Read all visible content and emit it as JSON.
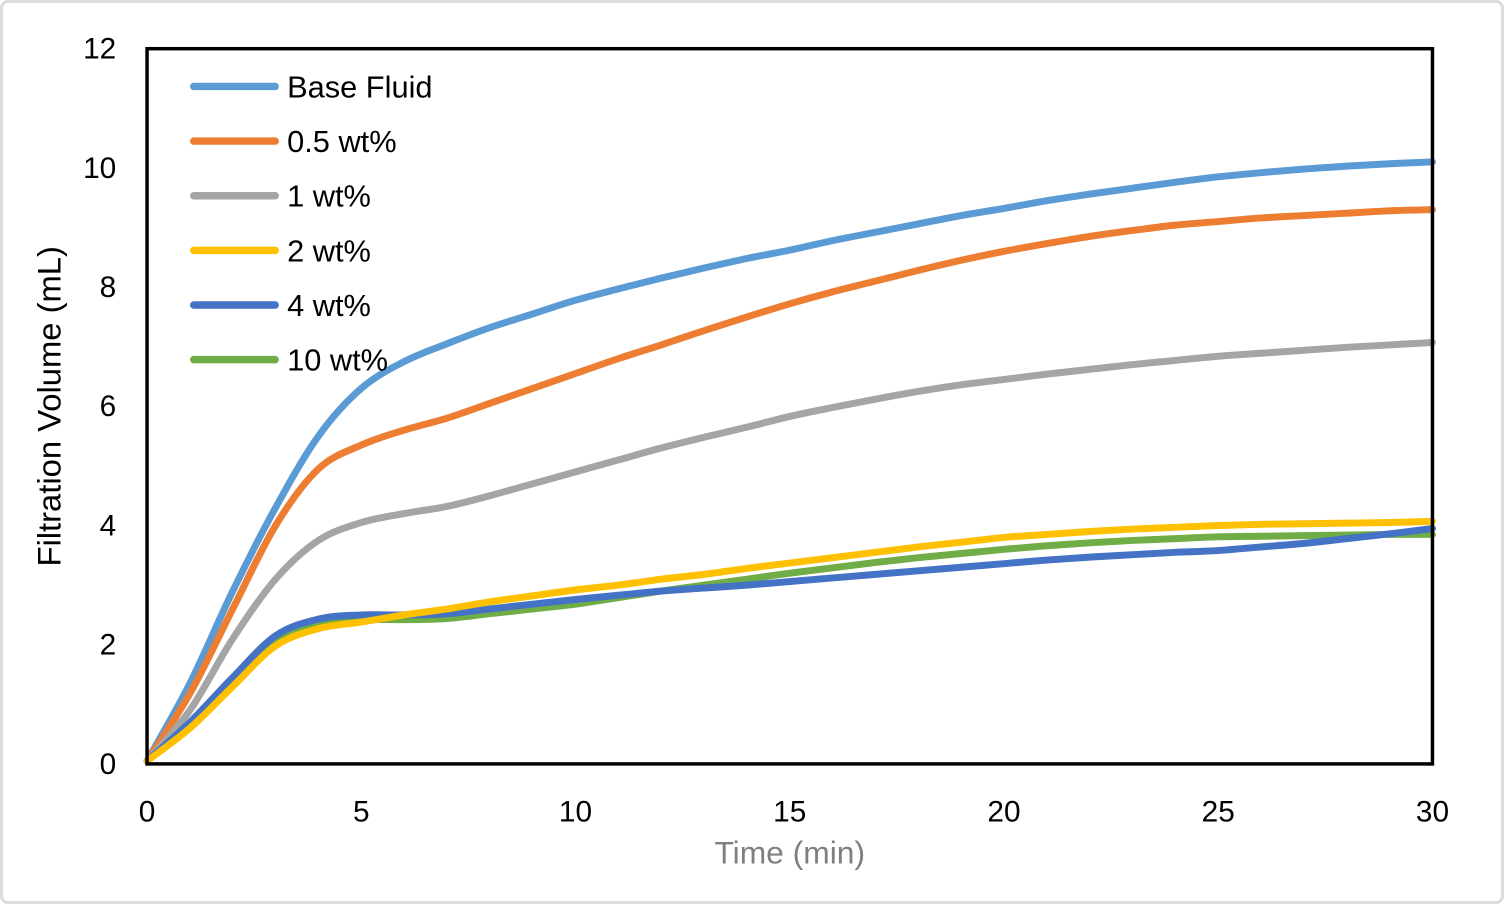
{
  "figure": {
    "background_color": "#ffffff",
    "outer_border_color": "#dcdcdc",
    "plot_frame_color": "#000000"
  },
  "chart_data": {
    "type": "line",
    "title": "",
    "xlabel": "Time (min)",
    "ylabel": "Filtration Volume (mL)",
    "xlim": [
      0,
      30
    ],
    "ylim": [
      0,
      12
    ],
    "x_ticks": [
      0,
      5,
      10,
      15,
      20,
      25,
      30
    ],
    "y_ticks": [
      0,
      2,
      4,
      6,
      8,
      10,
      12
    ],
    "grid": false,
    "legend_position": "top-left-inside",
    "tick_label_color": "#000000",
    "ylabel_color": "#000000",
    "xlabel_color": "#7f7f7f",
    "x": [
      0,
      1,
      2,
      3,
      4,
      5,
      6,
      7,
      8,
      9,
      10,
      11,
      12,
      13,
      14,
      15,
      16,
      17,
      18,
      19,
      20,
      21,
      22,
      23,
      24,
      25,
      26,
      27,
      28,
      29,
      30
    ],
    "series": [
      {
        "name": "Base Fluid",
        "color": "#5B9BD5",
        "values": [
          0.05,
          1.35,
          2.9,
          4.3,
          5.5,
          6.3,
          6.75,
          7.05,
          7.32,
          7.55,
          7.78,
          7.97,
          8.15,
          8.32,
          8.48,
          8.62,
          8.78,
          8.92,
          9.06,
          9.2,
          9.32,
          9.45,
          9.56,
          9.66,
          9.76,
          9.85,
          9.92,
          9.98,
          10.03,
          10.07,
          10.1
        ]
      },
      {
        "name": "0.5 wt%",
        "color": "#ED7D31",
        "values": [
          0.05,
          1.18,
          2.6,
          4.0,
          4.95,
          5.35,
          5.6,
          5.8,
          6.05,
          6.3,
          6.55,
          6.8,
          7.03,
          7.27,
          7.5,
          7.72,
          7.92,
          8.1,
          8.28,
          8.45,
          8.6,
          8.73,
          8.85,
          8.95,
          9.04,
          9.1,
          9.16,
          9.2,
          9.24,
          9.28,
          9.3
        ]
      },
      {
        "name": "1 wt%",
        "color": "#A5A5A5",
        "values": [
          0.05,
          0.9,
          2.1,
          3.1,
          3.75,
          4.05,
          4.2,
          4.32,
          4.5,
          4.7,
          4.9,
          5.1,
          5.3,
          5.48,
          5.65,
          5.83,
          5.98,
          6.12,
          6.25,
          6.36,
          6.45,
          6.54,
          6.62,
          6.7,
          6.77,
          6.84,
          6.89,
          6.94,
          6.99,
          7.03,
          7.07
        ]
      },
      {
        "name": "2 wt%",
        "color": "#FFC000",
        "values": [
          0.05,
          0.6,
          1.3,
          1.98,
          2.27,
          2.38,
          2.5,
          2.6,
          2.72,
          2.82,
          2.92,
          3.0,
          3.1,
          3.18,
          3.28,
          3.37,
          3.46,
          3.55,
          3.64,
          3.72,
          3.8,
          3.85,
          3.9,
          3.94,
          3.97,
          4.0,
          4.02,
          4.03,
          4.04,
          4.05,
          4.07
        ]
      },
      {
        "name": "4 wt%",
        "color": "#4472C4",
        "values": [
          0.05,
          0.7,
          1.45,
          2.15,
          2.43,
          2.5,
          2.5,
          2.52,
          2.6,
          2.68,
          2.76,
          2.83,
          2.9,
          2.95,
          3.0,
          3.06,
          3.12,
          3.18,
          3.24,
          3.3,
          3.36,
          3.42,
          3.47,
          3.51,
          3.55,
          3.58,
          3.64,
          3.7,
          3.78,
          3.86,
          3.95
        ]
      },
      {
        "name": "10 wt%",
        "color": "#70AD47",
        "values": [
          0.05,
          0.65,
          1.4,
          2.07,
          2.35,
          2.42,
          2.42,
          2.44,
          2.52,
          2.6,
          2.68,
          2.79,
          2.9,
          3.0,
          3.1,
          3.2,
          3.29,
          3.38,
          3.46,
          3.53,
          3.6,
          3.66,
          3.71,
          3.75,
          3.78,
          3.81,
          3.82,
          3.83,
          3.84,
          3.85,
          3.85
        ]
      }
    ]
  }
}
